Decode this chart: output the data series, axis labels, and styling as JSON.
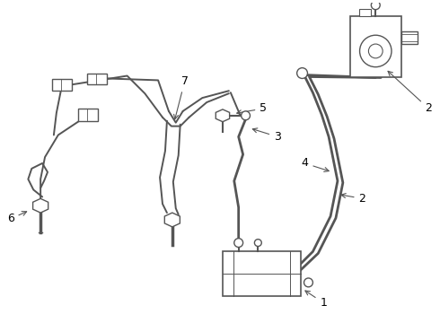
{
  "background_color": "#ffffff",
  "line_color": "#555555",
  "label_color": "#000000",
  "lw_thin": 1.0,
  "lw_med": 1.4,
  "lw_thick": 2.0
}
